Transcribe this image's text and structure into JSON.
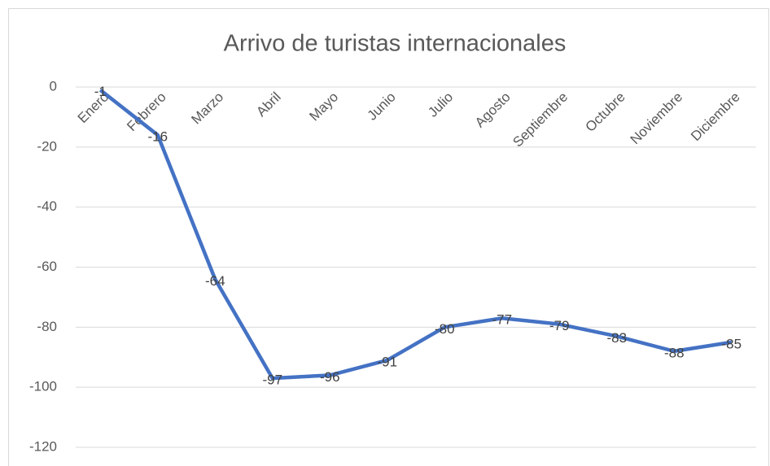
{
  "chart_data": {
    "type": "line",
    "title": "Arrivo de turistas internacionales",
    "categories": [
      "Enero",
      "Febrero",
      "Marzo",
      "Abril",
      "Mayo",
      "Junio",
      "Julio",
      "Agosto",
      "Septiembre",
      "Octubre",
      "Noviembre",
      "Diciembre"
    ],
    "values": [
      -1,
      -16,
      -64,
      -97,
      -96,
      -91,
      -80,
      -77,
      -79,
      -83,
      -88,
      -85
    ],
    "color": "#4472c4",
    "ylim": [
      -120,
      0
    ],
    "yticks": [
      0,
      -20,
      -40,
      -60,
      -80,
      -100,
      -120
    ],
    "grid": true
  }
}
